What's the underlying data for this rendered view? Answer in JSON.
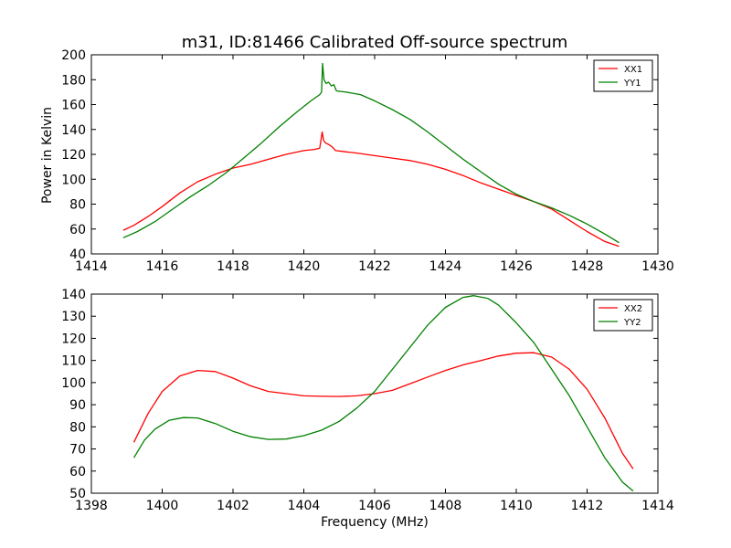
{
  "figure_title": "m31, ID:81466 Calibrated Off-source spectrum",
  "chart_data": [
    {
      "type": "line",
      "xlabel": "",
      "ylabel": "Power in Kelvin",
      "xlim": [
        1414,
        1430
      ],
      "ylim": [
        40,
        200
      ],
      "xticks": [
        1414,
        1416,
        1418,
        1420,
        1422,
        1424,
        1426,
        1428,
        1430
      ],
      "yticks": [
        40,
        60,
        80,
        100,
        120,
        140,
        160,
        180,
        200
      ],
      "grid": false,
      "legend_position": "top-right",
      "series": [
        {
          "name": "XX1",
          "color": "#ff0000",
          "points": [
            [
              1414.9,
              59
            ],
            [
              1415.2,
              63
            ],
            [
              1415.6,
              70
            ],
            [
              1416,
              78
            ],
            [
              1416.5,
              89
            ],
            [
              1417,
              98
            ],
            [
              1417.5,
              104
            ],
            [
              1418,
              109
            ],
            [
              1418.5,
              112
            ],
            [
              1419,
              116
            ],
            [
              1419.5,
              120
            ],
            [
              1420,
              123
            ],
            [
              1420.3,
              124
            ],
            [
              1420.45,
              125
            ],
            [
              1420.52,
              138
            ],
            [
              1420.56,
              131
            ],
            [
              1420.62,
              129
            ],
            [
              1420.7,
              128
            ],
            [
              1420.8,
              126
            ],
            [
              1420.9,
              123
            ],
            [
              1421.2,
              122
            ],
            [
              1421.5,
              121
            ],
            [
              1422,
              119
            ],
            [
              1422.5,
              117
            ],
            [
              1423,
              115
            ],
            [
              1423.5,
              112
            ],
            [
              1424,
              108
            ],
            [
              1424.5,
              103
            ],
            [
              1425,
              97
            ],
            [
              1425.5,
              92
            ],
            [
              1426,
              87
            ],
            [
              1426.5,
              82
            ],
            [
              1427,
              76
            ],
            [
              1427.5,
              67
            ],
            [
              1428,
              58
            ],
            [
              1428.5,
              50
            ],
            [
              1428.9,
              46
            ]
          ]
        },
        {
          "name": "YY1",
          "color": "#008000",
          "points": [
            [
              1414.9,
              53
            ],
            [
              1415.3,
              58
            ],
            [
              1415.8,
              66
            ],
            [
              1416.3,
              76
            ],
            [
              1416.8,
              86
            ],
            [
              1417.3,
              95
            ],
            [
              1417.8,
              105
            ],
            [
              1418.3,
              117
            ],
            [
              1418.8,
              129
            ],
            [
              1419.3,
              142
            ],
            [
              1419.8,
              154
            ],
            [
              1420.2,
              163
            ],
            [
              1420.45,
              168
            ],
            [
              1420.5,
              170
            ],
            [
              1420.53,
              193
            ],
            [
              1420.57,
              180
            ],
            [
              1420.63,
              177
            ],
            [
              1420.7,
              178
            ],
            [
              1420.78,
              175
            ],
            [
              1420.85,
              176
            ],
            [
              1420.92,
              171
            ],
            [
              1421.2,
              170
            ],
            [
              1421.6,
              168
            ],
            [
              1422,
              163
            ],
            [
              1422.5,
              156
            ],
            [
              1423,
              148
            ],
            [
              1423.5,
              138
            ],
            [
              1424,
              127
            ],
            [
              1424.5,
              116
            ],
            [
              1425,
              106
            ],
            [
              1425.5,
              96
            ],
            [
              1426,
              88
            ],
            [
              1426.5,
              82
            ],
            [
              1427,
              77
            ],
            [
              1427.5,
              71
            ],
            [
              1428,
              64
            ],
            [
              1428.5,
              56
            ],
            [
              1428.9,
              49
            ]
          ]
        }
      ]
    },
    {
      "type": "line",
      "xlabel": "Frequency (MHz)",
      "ylabel": "",
      "xlim": [
        1398,
        1414
      ],
      "ylim": [
        50,
        140
      ],
      "xticks": [
        1398,
        1400,
        1402,
        1404,
        1406,
        1408,
        1410,
        1412,
        1414
      ],
      "yticks": [
        50,
        60,
        70,
        80,
        90,
        100,
        110,
        120,
        130,
        140
      ],
      "grid": false,
      "legend_position": "top-right",
      "series": [
        {
          "name": "XX2",
          "color": "#ff0000",
          "points": [
            [
              1399.2,
              73
            ],
            [
              1399.6,
              86
            ],
            [
              1400,
              96
            ],
            [
              1400.5,
              103
            ],
            [
              1401,
              105.5
            ],
            [
              1401.5,
              105
            ],
            [
              1402,
              102
            ],
            [
              1402.5,
              98.5
            ],
            [
              1403,
              96
            ],
            [
              1403.5,
              95
            ],
            [
              1404,
              94
            ],
            [
              1404.5,
              93.8
            ],
            [
              1405,
              93.7
            ],
            [
              1405.5,
              94
            ],
            [
              1406,
              95
            ],
            [
              1406.5,
              96.5
            ],
            [
              1407,
              99.5
            ],
            [
              1407.5,
              102.5
            ],
            [
              1408,
              105.5
            ],
            [
              1408.5,
              108
            ],
            [
              1409,
              110
            ],
            [
              1409.5,
              112
            ],
            [
              1410,
              113.3
            ],
            [
              1410.5,
              113.5
            ],
            [
              1411,
              111.5
            ],
            [
              1411.5,
              106
            ],
            [
              1412,
              97
            ],
            [
              1412.5,
              84
            ],
            [
              1413,
              68
            ],
            [
              1413.3,
              61
            ]
          ]
        },
        {
          "name": "YY2",
          "color": "#008000",
          "points": [
            [
              1399.2,
              66
            ],
            [
              1399.5,
              74
            ],
            [
              1399.8,
              79
            ],
            [
              1400.2,
              83
            ],
            [
              1400.6,
              84.2
            ],
            [
              1401,
              84
            ],
            [
              1401.5,
              81.5
            ],
            [
              1402,
              78
            ],
            [
              1402.5,
              75.5
            ],
            [
              1403,
              74.3
            ],
            [
              1403.5,
              74.5
            ],
            [
              1404,
              76
            ],
            [
              1404.5,
              78.5
            ],
            [
              1405,
              82.5
            ],
            [
              1405.5,
              88.5
            ],
            [
              1406,
              96
            ],
            [
              1406.5,
              106
            ],
            [
              1407,
              116
            ],
            [
              1407.5,
              126
            ],
            [
              1408,
              134
            ],
            [
              1408.5,
              138.5
            ],
            [
              1408.8,
              139.3
            ],
            [
              1409.2,
              138
            ],
            [
              1409.5,
              135
            ],
            [
              1410,
              127
            ],
            [
              1410.5,
              118
            ],
            [
              1411,
              106
            ],
            [
              1411.5,
              94
            ],
            [
              1412,
              80
            ],
            [
              1412.5,
              66
            ],
            [
              1413,
              55
            ],
            [
              1413.3,
              51
            ]
          ]
        }
      ]
    }
  ]
}
